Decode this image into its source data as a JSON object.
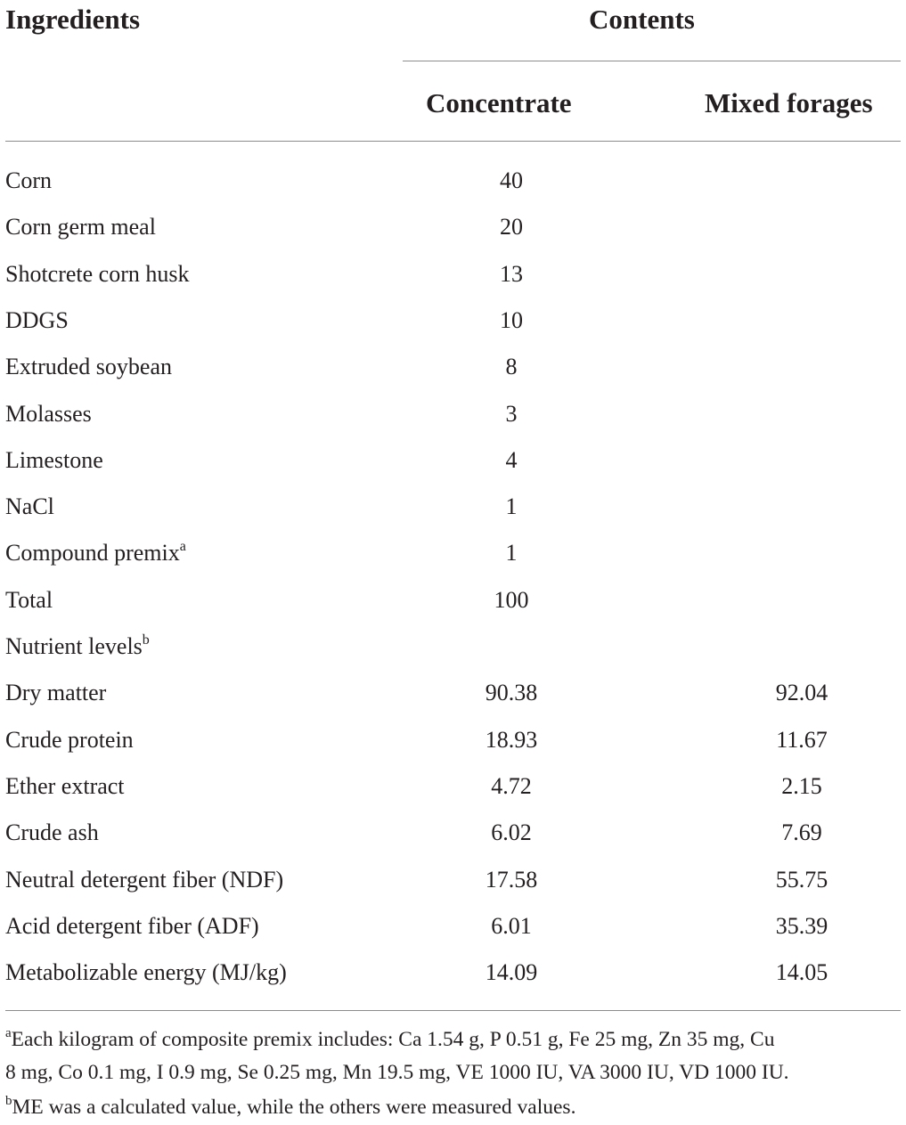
{
  "table": {
    "headers": {
      "ingredients": "Ingredients",
      "contents": "Contents",
      "concentrate": "Concentrate",
      "mixed_forages": "Mixed forages"
    },
    "rows": [
      {
        "label": "Corn",
        "sup": "",
        "concentrate": "40",
        "mixed": ""
      },
      {
        "label": "Corn germ meal",
        "sup": "",
        "concentrate": "20",
        "mixed": ""
      },
      {
        "label": "Shotcrete corn husk",
        "sup": "",
        "concentrate": "13",
        "mixed": ""
      },
      {
        "label": "DDGS",
        "sup": "",
        "concentrate": "10",
        "mixed": ""
      },
      {
        "label": "Extruded soybean",
        "sup": "",
        "concentrate": "8",
        "mixed": ""
      },
      {
        "label": "Molasses",
        "sup": "",
        "concentrate": "3",
        "mixed": ""
      },
      {
        "label": "Limestone",
        "sup": "",
        "concentrate": "4",
        "mixed": ""
      },
      {
        "label": "NaCl",
        "sup": "",
        "concentrate": "1",
        "mixed": ""
      },
      {
        "label": "Compound premix",
        "sup": "a",
        "concentrate": "1",
        "mixed": ""
      },
      {
        "label": "Total",
        "sup": "",
        "concentrate": "100",
        "mixed": ""
      },
      {
        "label": "Nutrient levels",
        "sup": "b",
        "concentrate": "",
        "mixed": ""
      },
      {
        "label": "Dry matter",
        "sup": "",
        "concentrate": "90.38",
        "mixed": "92.04"
      },
      {
        "label": "Crude protein",
        "sup": "",
        "concentrate": "18.93",
        "mixed": "11.67"
      },
      {
        "label": "Ether extract",
        "sup": "",
        "concentrate": "4.72",
        "mixed": "2.15"
      },
      {
        "label": "Crude ash",
        "sup": "",
        "concentrate": "6.02",
        "mixed": "7.69"
      },
      {
        "label": "Neutral detergent fiber (NDF)",
        "sup": "",
        "concentrate": "17.58",
        "mixed": "55.75"
      },
      {
        "label": "Acid detergent fiber (ADF)",
        "sup": "",
        "concentrate": "6.01",
        "mixed": "35.39"
      },
      {
        "label": "Metabolizable energy (MJ/kg)",
        "sup": "",
        "concentrate": "14.09",
        "mixed": "14.05"
      }
    ]
  },
  "footnotes": {
    "a": {
      "marker": "a",
      "line1": "Each kilogram of composite premix includes: Ca 1.54 g, P 0.51 g, Fe 25 mg, Zn 35 mg, Cu",
      "line2": "8 mg, Co 0.1 mg, I 0.9 mg, Se 0.25 mg, Mn 19.5 mg, VE 1000 IU, VA 3000 IU, VD 1000 IU."
    },
    "b": {
      "marker": "b",
      "text": "ME was a calculated value, while the others were measured values."
    }
  }
}
